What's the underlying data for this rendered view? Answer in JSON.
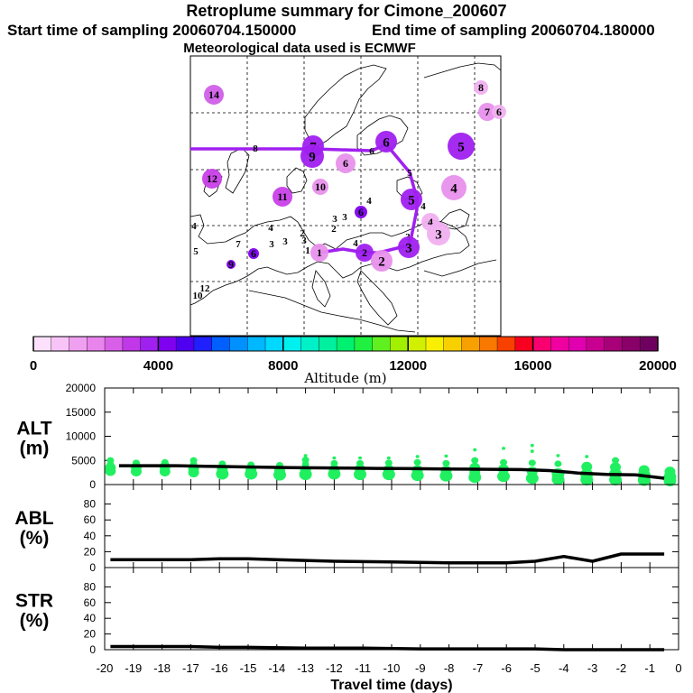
{
  "header": {
    "title": "Retroplume summary for Cimone_200607",
    "start": "Start time of sampling 20060704.150000",
    "end": "End time of sampling 20060704.180000",
    "met": "Meteorological data used is ECMWF"
  },
  "colorbar": {
    "label": "Altitude (m)",
    "ticks": [
      "0",
      "4000",
      "8000",
      "12000",
      "16000",
      "20000"
    ],
    "colors": [
      "#fce0fc",
      "#f8c4f8",
      "#f0a0f0",
      "#e884ec",
      "#d860e8",
      "#c038e8",
      "#a020f0",
      "#8000f0",
      "#5000f0",
      "#2020ff",
      "#0060ff",
      "#0090ff",
      "#00b8ff",
      "#00d8ff",
      "#00f0f0",
      "#00f0c8",
      "#00f0a0",
      "#00f070",
      "#20f040",
      "#60f020",
      "#a0f000",
      "#d0f000",
      "#f8f000",
      "#f8d000",
      "#f8a000",
      "#f87800",
      "#f84000",
      "#f80020",
      "#f80070",
      "#f000a0",
      "#e000b0",
      "#c80090",
      "#a80078",
      "#880068",
      "#700060"
    ]
  },
  "map_labels": [
    {
      "text": "14",
      "c": "#d060e8",
      "x": 237,
      "y": 105,
      "r": 11
    },
    {
      "text": "8",
      "c": "#f0b0f0",
      "x": 533,
      "y": 97,
      "r": 8
    },
    {
      "text": "7",
      "c": "#e890ec",
      "x": 540,
      "y": 124,
      "r": 10
    },
    {
      "text": "6",
      "c": "#f0b0f0",
      "x": 553,
      "y": 124,
      "r": 8
    },
    {
      "text": "8",
      "c": "#a020f0",
      "x": 283,
      "y": 164,
      "r": 0
    },
    {
      "text": "7",
      "c": "#a020f0",
      "x": 347,
      "y": 162,
      "r": 12
    },
    {
      "text": "9",
      "c": "#a020f0",
      "x": 346,
      "y": 173,
      "r": 13
    },
    {
      "text": "6",
      "c": "#a020f0",
      "x": 428,
      "y": 157,
      "r": 12
    },
    {
      "text": "6",
      "c": "#d060e8",
      "x": 412,
      "y": 167,
      "r": 0
    },
    {
      "text": "5",
      "c": "#a020f0",
      "x": 511,
      "y": 162,
      "r": 15
    },
    {
      "text": "6",
      "c": "#e890ec",
      "x": 383,
      "y": 181,
      "r": 11
    },
    {
      "text": "5",
      "c": "#a020f0",
      "x": 454,
      "y": 191,
      "r": 0
    },
    {
      "text": "12",
      "c": "#c840e8",
      "x": 235,
      "y": 198,
      "r": 11
    },
    {
      "text": "10",
      "c": "#e890ec",
      "x": 355,
      "y": 207,
      "r": 9
    },
    {
      "text": "4",
      "c": "#e890ec",
      "x": 503,
      "y": 208,
      "r": 14
    },
    {
      "text": "11",
      "c": "#c840e8",
      "x": 313,
      "y": 218,
      "r": 11
    },
    {
      "text": "5",
      "c": "#a020f0",
      "x": 456,
      "y": 221,
      "r": 12
    },
    {
      "text": "4",
      "c": "#a020f0",
      "x": 469,
      "y": 228,
      "r": 0
    },
    {
      "text": "4",
      "c": "#a020f0",
      "x": 409,
      "y": 222,
      "r": 0
    },
    {
      "text": "6",
      "c": "#8000f0",
      "x": 400,
      "y": 235,
      "r": 7
    },
    {
      "text": "3",
      "c": "#c840e8",
      "x": 371,
      "y": 242,
      "r": 0
    },
    {
      "text": "3",
      "c": "#00c8e8",
      "x": 382,
      "y": 240,
      "r": 0
    },
    {
      "text": "4",
      "c": "#a020f0",
      "x": 215,
      "y": 250,
      "r": 0
    },
    {
      "text": "4",
      "c": "#a020f0",
      "x": 300,
      "y": 252,
      "r": 0
    },
    {
      "text": "4",
      "c": "#f0b0f0",
      "x": 477,
      "y": 246,
      "r": 10
    },
    {
      "text": "3",
      "c": "#f0b0f0",
      "x": 486,
      "y": 259,
      "r": 13
    },
    {
      "text": "3",
      "c": "#a020f0",
      "x": 452,
      "y": 262,
      "r": 0
    },
    {
      "text": "2",
      "c": "#a020f0",
      "x": 335,
      "y": 258,
      "r": 0
    },
    {
      "text": "2",
      "c": "#a020f0",
      "x": 370,
      "y": 253,
      "r": 0
    },
    {
      "text": "7",
      "c": "#a020f0",
      "x": 264,
      "y": 270,
      "r": 0
    },
    {
      "text": "3",
      "c": "#a020f0",
      "x": 301,
      "y": 270,
      "r": 0
    },
    {
      "text": "3",
      "c": "#a020f0",
      "x": 316,
      "y": 267,
      "r": 0
    },
    {
      "text": "3",
      "c": "#c840e8",
      "x": 337,
      "y": 266,
      "r": 0
    },
    {
      "text": "1",
      "c": "#a020f0",
      "x": 341,
      "y": 277,
      "r": 0
    },
    {
      "text": "1",
      "c": "#e890ec",
      "x": 354,
      "y": 280,
      "r": 10
    },
    {
      "text": "4",
      "c": "#a020f0",
      "x": 394,
      "y": 269,
      "r": 0
    },
    {
      "text": "3",
      "c": "#a020f0",
      "x": 453,
      "y": 274,
      "r": 12
    },
    {
      "text": "2",
      "c": "#a020f0",
      "x": 404,
      "y": 280,
      "r": 10
    },
    {
      "text": "2",
      "c": "#e890ec",
      "x": 423,
      "y": 289,
      "r": 12
    },
    {
      "text": "5",
      "c": "#a020f0",
      "x": 217,
      "y": 278,
      "r": 0
    },
    {
      "text": "6",
      "c": "#8000f0",
      "x": 281,
      "y": 281,
      "r": 6
    },
    {
      "text": "9",
      "c": "#8000f0",
      "x": 256,
      "y": 293,
      "r": 5
    },
    {
      "text": "12",
      "c": "#c840e8",
      "x": 227,
      "y": 319,
      "r": 0
    },
    {
      "text": "10",
      "c": "#c840e8",
      "x": 219,
      "y": 327,
      "r": 0
    }
  ],
  "chart_data": [
    {
      "type": "line",
      "panel": "ALT",
      "title": "ALT (m)",
      "ylabel_top": "ALT",
      "ylabel_bottom": "(m)",
      "ylim": [
        0,
        20000
      ],
      "yticks": [
        0,
        5000,
        10000,
        15000,
        20000
      ],
      "xlim": [
        -20,
        0
      ],
      "x": [
        -19.5,
        -18.5,
        -17.5,
        -16.5,
        -15.5,
        -14.5,
        -13.5,
        -12.5,
        -11.5,
        -10.5,
        -9.5,
        -8.5,
        -7.5,
        -6.5,
        -5.5,
        -4.5,
        -3.5,
        -2.5,
        -1.5,
        -0.5
      ],
      "mean": [
        3900,
        3900,
        3900,
        3800,
        3700,
        3600,
        3500,
        3450,
        3400,
        3350,
        3300,
        3250,
        3200,
        3150,
        3100,
        2900,
        2400,
        2100,
        2000,
        1300
      ],
      "plume_points": [
        [
          -19.8,
          2800
        ],
        [
          -19.8,
          3500
        ],
        [
          -19.8,
          4200
        ],
        [
          -19.8,
          5000
        ],
        [
          -18.9,
          2700
        ],
        [
          -18.9,
          3600
        ],
        [
          -18.9,
          4500
        ],
        [
          -17.9,
          2700
        ],
        [
          -17.9,
          3700
        ],
        [
          -17.9,
          4600
        ],
        [
          -16.9,
          2500
        ],
        [
          -16.9,
          3300
        ],
        [
          -16.9,
          4200
        ],
        [
          -16.9,
          5000
        ],
        [
          -15.9,
          2200
        ],
        [
          -15.9,
          3200
        ],
        [
          -15.9,
          4300
        ],
        [
          -14.9,
          2200
        ],
        [
          -14.9,
          3100
        ],
        [
          -14.9,
          4100
        ],
        [
          -13.9,
          2000
        ],
        [
          -13.9,
          2900
        ],
        [
          -13.9,
          4000
        ],
        [
          -13.0,
          2100
        ],
        [
          -13.0,
          3000
        ],
        [
          -13.0,
          4200
        ],
        [
          -13.0,
          5100
        ],
        [
          -13.0,
          6000
        ],
        [
          -12.0,
          2200
        ],
        [
          -12.0,
          3100
        ],
        [
          -12.0,
          4400
        ],
        [
          -12.0,
          5500
        ],
        [
          -11.1,
          2100
        ],
        [
          -11.1,
          3200
        ],
        [
          -11.1,
          4400
        ],
        [
          -11.1,
          5500
        ],
        [
          -10.1,
          2100
        ],
        [
          -10.1,
          3100
        ],
        [
          -10.1,
          4500
        ],
        [
          -10.1,
          5500
        ],
        [
          -9.1,
          1900
        ],
        [
          -9.1,
          3000
        ],
        [
          -9.1,
          4600
        ],
        [
          -9.1,
          5800
        ],
        [
          -8.1,
          1800
        ],
        [
          -8.1,
          2900
        ],
        [
          -8.1,
          4400
        ],
        [
          -8.1,
          5900
        ],
        [
          -7.1,
          1500
        ],
        [
          -7.1,
          2500
        ],
        [
          -7.1,
          3500
        ],
        [
          -7.1,
          5000
        ],
        [
          -7.1,
          7200
        ],
        [
          -6.1,
          1700
        ],
        [
          -6.1,
          3200
        ],
        [
          -6.1,
          4600
        ],
        [
          -6.1,
          7500
        ],
        [
          -5.1,
          1300
        ],
        [
          -5.1,
          2700
        ],
        [
          -5.1,
          4500
        ],
        [
          -5.1,
          6900
        ],
        [
          -5.1,
          8100
        ],
        [
          -4.2,
          1100
        ],
        [
          -4.2,
          2200
        ],
        [
          -4.2,
          4300
        ],
        [
          -4.2,
          6000
        ],
        [
          -3.2,
          1000
        ],
        [
          -3.2,
          2100
        ],
        [
          -3.2,
          3700
        ],
        [
          -3.2,
          5800
        ],
        [
          -2.2,
          1000
        ],
        [
          -2.2,
          2200
        ],
        [
          -2.2,
          3600
        ],
        [
          -2.2,
          5000
        ],
        [
          -1.2,
          900
        ],
        [
          -1.2,
          2000
        ],
        [
          -1.2,
          3000
        ],
        [
          -0.3,
          800
        ],
        [
          -0.3,
          1600
        ],
        [
          -0.3,
          2700
        ]
      ]
    },
    {
      "type": "line",
      "panel": "ABL",
      "title": "ABL (%)",
      "ylabel_top": "ABL",
      "ylabel_bottom": "(%)",
      "ylim": [
        0,
        100
      ],
      "yticks": [
        0,
        20,
        40,
        60,
        80
      ],
      "xlim": [
        -20,
        0
      ],
      "x": [
        -19.8,
        -17,
        -16,
        -15,
        -14,
        -12,
        -10,
        -8,
        -6,
        -5,
        -4,
        -3,
        -2,
        -0.5
      ],
      "values": [
        10,
        10,
        11,
        11,
        10,
        8,
        7,
        6,
        6,
        8,
        14,
        8,
        17,
        17
      ]
    },
    {
      "type": "line",
      "panel": "STR",
      "title": "STR (%)",
      "ylabel_top": "STR",
      "ylabel_bottom": "(%)",
      "ylim": [
        0,
        100
      ],
      "yticks": [
        0,
        20,
        40,
        60,
        80
      ],
      "xlim": [
        -20,
        0
      ],
      "x": [
        -19.8,
        -17,
        -16,
        -15,
        -13,
        -11,
        -9,
        -7,
        -5,
        -4,
        -3,
        -2,
        -1,
        -0.5
      ],
      "values": [
        4,
        4,
        3,
        3,
        2,
        2,
        1,
        1,
        1,
        0,
        0,
        0,
        0,
        0
      ]
    }
  ],
  "xaxis": {
    "label": "Travel time (days)",
    "ticks": [
      "-20",
      "-19",
      "-18",
      "-17",
      "-16",
      "-15",
      "-14",
      "-13",
      "-12",
      "-11",
      "-10",
      "-9",
      "-8",
      "-7",
      "-6",
      "-5",
      "-4",
      "-3",
      "-2",
      "-1",
      "0"
    ]
  }
}
